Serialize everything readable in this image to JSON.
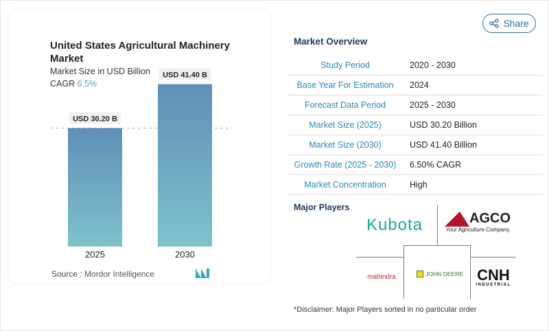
{
  "share_label": "Share",
  "chart": {
    "title": "United States Agricultural Machinery Market",
    "subtitle": "Market Size in USD Billion",
    "cagr_label": "CAGR",
    "cagr_value": "6.5%",
    "source_label": "Source :",
    "source_value": "Mordor Intelligence"
  },
  "chart_data": {
    "type": "bar",
    "title": "United States Agricultural Machinery Market",
    "subtitle": "Market Size in USD Billion",
    "categories": [
      "2025",
      "2030"
    ],
    "values": [
      30.2,
      41.4
    ],
    "data_labels": [
      "USD 30.20 B",
      "USD 41.40 B"
    ],
    "ylim": [
      0,
      45
    ],
    "grid": false,
    "colors": {
      "bar_top": "#5f90b8",
      "bar_bottom": "#7fc1cb"
    }
  },
  "overview": {
    "title": "Market Overview",
    "rows": [
      {
        "label": "Study Period",
        "value": "2020 - 2030"
      },
      {
        "label": "Base Year For Estimation",
        "value": "2024"
      },
      {
        "label": "Forecast Data Period",
        "value": "2025 - 2030"
      },
      {
        "label": "Market Size (2025)",
        "value": "USD 30.20 Billion"
      },
      {
        "label": "Market Size (2030)",
        "value": "USD 41.40 Billion"
      },
      {
        "label": "Growth Rate (2025 - 2030)",
        "value": "6.50% CAGR"
      },
      {
        "label": "Market Concentration",
        "value": "High"
      }
    ]
  },
  "players": {
    "title": "Major Players",
    "logos": [
      "Kubota",
      "AGCO Your Agriculture Company",
      "Mahindra Rise",
      "John Deere",
      "CNH Industrial"
    ]
  },
  "disclaimer": "*Disclaimer: Major Players sorted in no particular order"
}
